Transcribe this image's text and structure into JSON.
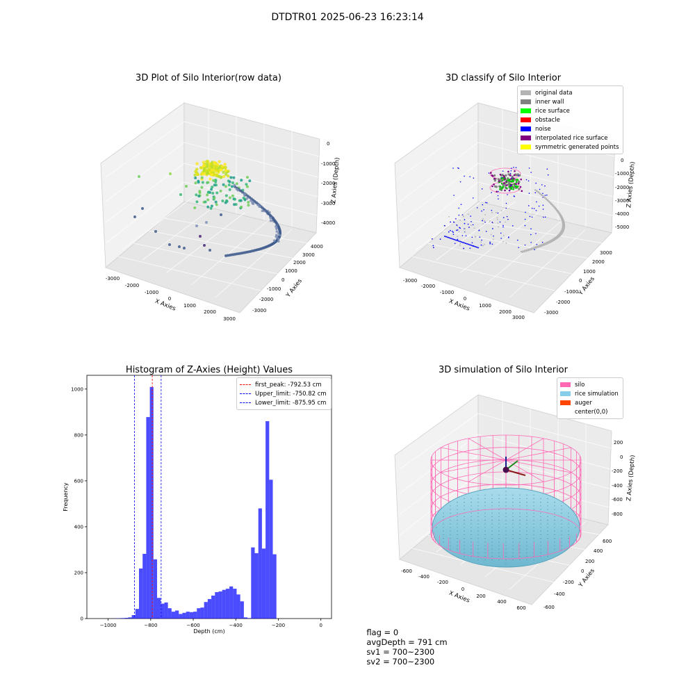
{
  "figure": {
    "suptitle": "DTDTR01 2025-06-23 16:23:14"
  },
  "status": {
    "flag": "flag = 0",
    "avg_depth": "avgDepth = 791 cm",
    "sv1": "sv1 = 700~2300",
    "sv2": "sv2 = 700~2300"
  },
  "panels": {
    "raw": {
      "title": "3D Plot of Silo Interior(row data)",
      "xlabel": "X Axies",
      "ylabel": "Y Axies",
      "zlabel": "Z Axies (Depth)",
      "xticks": [
        "-3000",
        "-2000",
        "-1000",
        "0",
        "1000",
        "2000",
        "3000"
      ],
      "yticks": [
        "-3000",
        "-2000",
        "-1000",
        "0",
        "1000",
        "2000",
        "3000",
        "4000"
      ],
      "zticks": [
        "0",
        "-1000",
        "-2000",
        "-3000",
        "-4000"
      ]
    },
    "classify": {
      "title": "3D classify of Silo Interior",
      "xlabel": "X Axies",
      "ylabel": "Y Axies",
      "zlabel": "Z Axies (Depth)",
      "xticks": [
        "-3000",
        "-2000",
        "-1000",
        "0",
        "1000",
        "2000",
        "3000"
      ],
      "yticks": [
        "-3000",
        "-2000",
        "-1000",
        "0",
        "1000",
        "2000",
        "3000"
      ],
      "zticks": [
        "0",
        "-1000",
        "-2000",
        "-3000",
        "-4000",
        "-5000"
      ],
      "legend": [
        {
          "label": "original data",
          "color": "#b3b3b3"
        },
        {
          "label": "inner wall",
          "color": "#808080"
        },
        {
          "label": "rice surface",
          "color": "#00ff00"
        },
        {
          "label": "obstacle",
          "color": "#ff0000"
        },
        {
          "label": "noise",
          "color": "#0000ff"
        },
        {
          "label": "interpolated rice surface",
          "color": "#800080"
        },
        {
          "label": "symmetric generated points",
          "color": "#ffff00"
        }
      ]
    },
    "simulation": {
      "title": "3D simulation of Silo Interior",
      "xlabel": "X Axies",
      "ylabel": "Y Axies",
      "zlabel": "Z Axies (Depth)",
      "xticks": [
        "-600",
        "-400",
        "-200",
        "0",
        "200",
        "400",
        "600"
      ],
      "yticks": [
        "-600",
        "-400",
        "-200",
        "0",
        "200",
        "400",
        "600"
      ],
      "zticks": [
        "200",
        "0",
        "-200",
        "-400",
        "-600",
        "-800"
      ],
      "legend": [
        {
          "label": "silo",
          "color": "#ff69b4"
        },
        {
          "label": "rice simulation",
          "color": "#87ceeb"
        },
        {
          "label": "auger",
          "color": "#ff4500"
        },
        {
          "label": "center(0,0)",
          "color": "#ffffff"
        }
      ]
    }
  },
  "chart_data": [
    {
      "type": "scatter",
      "title": "3D Plot of Silo Interior(row data)",
      "xlabel": "X Axies",
      "ylabel": "Y Axies",
      "zlabel": "Z Axies (Depth)",
      "xlim": [
        -3000,
        3000
      ],
      "ylim": [
        -3000,
        4000
      ],
      "zlim": [
        -4500,
        0
      ],
      "projection": "3d",
      "colormap": "viridis"
    },
    {
      "type": "scatter",
      "title": "3D classify of Silo Interior",
      "xlabel": "X Axies",
      "ylabel": "Y Axies",
      "zlabel": "Z Axies (Depth)",
      "xlim": [
        -3000,
        3000
      ],
      "ylim": [
        -3000,
        3000
      ],
      "zlim": [
        -5000,
        0
      ],
      "projection": "3d",
      "legend": [
        "original data",
        "inner wall",
        "rice surface",
        "obstacle",
        "noise",
        "interpolated rice surface",
        "symmetric generated points"
      ],
      "legend_position": "top-right"
    },
    {
      "type": "bar",
      "title": "Histogram of Z-Axies (Height) Values",
      "xlabel": "Depth (cm)",
      "ylabel": "Frequency",
      "xlim": [
        -1100,
        50
      ],
      "ylim": [
        0,
        1060
      ],
      "xticks": [
        "−1000",
        "−800",
        "−600",
        "−400",
        "−200",
        "0"
      ],
      "yticks": [
        "0",
        "200",
        "400",
        "600",
        "800",
        "1000"
      ],
      "bar_color": "#0000ff",
      "bin_width": 17,
      "bins": [
        {
          "x": -974,
          "count": 1
        },
        {
          "x": -957,
          "count": 1
        },
        {
          "x": -940,
          "count": 2
        },
        {
          "x": -923,
          "count": 3
        },
        {
          "x": -906,
          "count": 5
        },
        {
          "x": -889,
          "count": 15
        },
        {
          "x": -872,
          "count": 42
        },
        {
          "x": -855,
          "count": 218
        },
        {
          "x": -838,
          "count": 282
        },
        {
          "x": -821,
          "count": 878
        },
        {
          "x": -804,
          "count": 1009
        },
        {
          "x": -787,
          "count": 258
        },
        {
          "x": -770,
          "count": 90
        },
        {
          "x": -753,
          "count": 65
        },
        {
          "x": -736,
          "count": 70
        },
        {
          "x": -719,
          "count": 45
        },
        {
          "x": -702,
          "count": 30
        },
        {
          "x": -685,
          "count": 35
        },
        {
          "x": -668,
          "count": 20
        },
        {
          "x": -651,
          "count": 25
        },
        {
          "x": -634,
          "count": 30
        },
        {
          "x": -617,
          "count": 28
        },
        {
          "x": -600,
          "count": 30
        },
        {
          "x": -583,
          "count": 45
        },
        {
          "x": -566,
          "count": 48
        },
        {
          "x": -549,
          "count": 72
        },
        {
          "x": -532,
          "count": 85
        },
        {
          "x": -515,
          "count": 100
        },
        {
          "x": -498,
          "count": 115
        },
        {
          "x": -481,
          "count": 118
        },
        {
          "x": -464,
          "count": 125
        },
        {
          "x": -447,
          "count": 130
        },
        {
          "x": -430,
          "count": 140
        },
        {
          "x": -413,
          "count": 130
        },
        {
          "x": -396,
          "count": 105
        },
        {
          "x": -379,
          "count": 75
        },
        {
          "x": -362,
          "count": 5
        },
        {
          "x": -345,
          "count": 2
        },
        {
          "x": -328,
          "count": 310
        },
        {
          "x": -311,
          "count": 285
        },
        {
          "x": -294,
          "count": 480
        },
        {
          "x": -277,
          "count": 305
        },
        {
          "x": -260,
          "count": 860
        },
        {
          "x": -243,
          "count": 605
        },
        {
          "x": -226,
          "count": 280
        }
      ],
      "vlines": [
        {
          "label": "first_peak: -792.53 cm",
          "x": -792.53,
          "color": "#ff0000"
        },
        {
          "label": "Upper_limit: -750.82 cm",
          "x": -750.82,
          "color": "#0000ff"
        },
        {
          "label": "Lower_limit: -875.95 cm",
          "x": -875.95,
          "color": "#0000ff"
        }
      ],
      "legend_position": "top-right"
    },
    {
      "type": "scatter",
      "title": "3D simulation of Silo Interior",
      "xlabel": "X Axies",
      "ylabel": "Y Axies",
      "zlabel": "Z Axies (Depth)",
      "xlim": [
        -600,
        600
      ],
      "ylim": [
        -600,
        600
      ],
      "zlim": [
        -900,
        300
      ],
      "projection": "3d",
      "legend": [
        "silo",
        "rice simulation",
        "auger",
        "center(0,0)"
      ],
      "legend_position": "top-right",
      "avg_depth_cm": 791
    }
  ]
}
